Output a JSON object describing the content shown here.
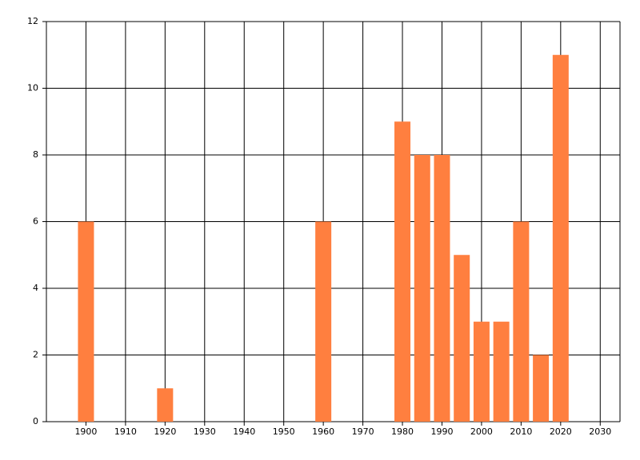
{
  "chart_data": {
    "type": "bar",
    "x": [
      1900,
      1920,
      1960,
      1980,
      1985,
      1990,
      1995,
      2000,
      2005,
      2010,
      2015,
      2020
    ],
    "values": [
      6,
      1,
      6,
      9,
      8,
      8,
      5,
      3,
      3,
      6,
      2,
      11
    ],
    "color": "#ff7f3f",
    "xlim": [
      1890,
      2035
    ],
    "xticks": [
      1900,
      1910,
      1920,
      1930,
      1940,
      1950,
      1960,
      1970,
      1980,
      1990,
      2000,
      2010,
      2020,
      2030
    ],
    "ylim": [
      0,
      12
    ],
    "yticks": [
      0,
      2,
      4,
      6,
      8,
      10,
      12
    ],
    "grid": true
  }
}
